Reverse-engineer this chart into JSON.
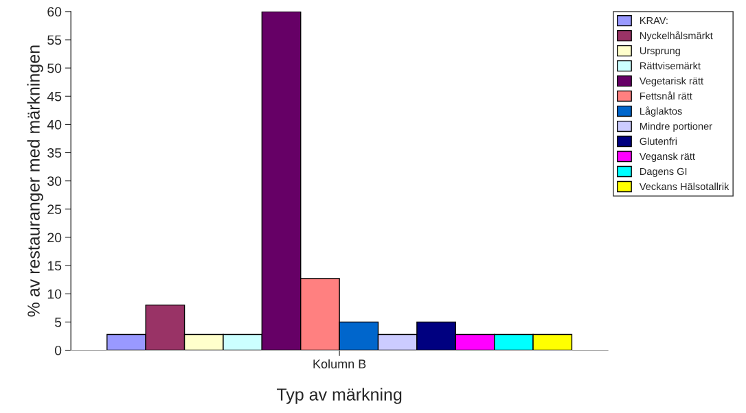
{
  "chart_data": {
    "type": "bar",
    "xlabel": "Typ av märkning",
    "ylabel": "% av restauranger med märkningen",
    "categories": [
      "Kolumn B"
    ],
    "series": [
      {
        "name": "KRAV:",
        "color": "#9999ff",
        "values": [
          2.8
        ]
      },
      {
        "name": "Nyckelhålsmärkt",
        "color": "#993366",
        "values": [
          8
        ]
      },
      {
        "name": "Ursprung",
        "color": "#ffffcc",
        "values": [
          2.8
        ]
      },
      {
        "name": "Rättvisemärkt",
        "color": "#ccffff",
        "values": [
          2.8
        ]
      },
      {
        "name": "Vegetarisk rätt",
        "color": "#660066",
        "values": [
          60
        ]
      },
      {
        "name": "Fettsnål rätt",
        "color": "#ff8080",
        "values": [
          12.7
        ]
      },
      {
        "name": "Låglaktos",
        "color": "#0066cc",
        "values": [
          5
        ]
      },
      {
        "name": "Mindre portioner",
        "color": "#ccccff",
        "values": [
          2.8
        ]
      },
      {
        "name": "Glutenfri",
        "color": "#000080",
        "values": [
          5
        ]
      },
      {
        "name": "Vegansk rätt",
        "color": "#ff00ff",
        "values": [
          2.8
        ]
      },
      {
        "name": "Dagens GI",
        "color": "#00ffff",
        "values": [
          2.8
        ]
      },
      {
        "name": "Veckans Hälsotallrik",
        "color": "#ffff00",
        "values": [
          2.8
        ]
      }
    ],
    "ylim": [
      0,
      60
    ],
    "yticks": [
      0,
      5,
      10,
      15,
      20,
      25,
      30,
      35,
      40,
      45,
      50,
      55,
      60
    ],
    "grid": false,
    "legend": "top right"
  }
}
